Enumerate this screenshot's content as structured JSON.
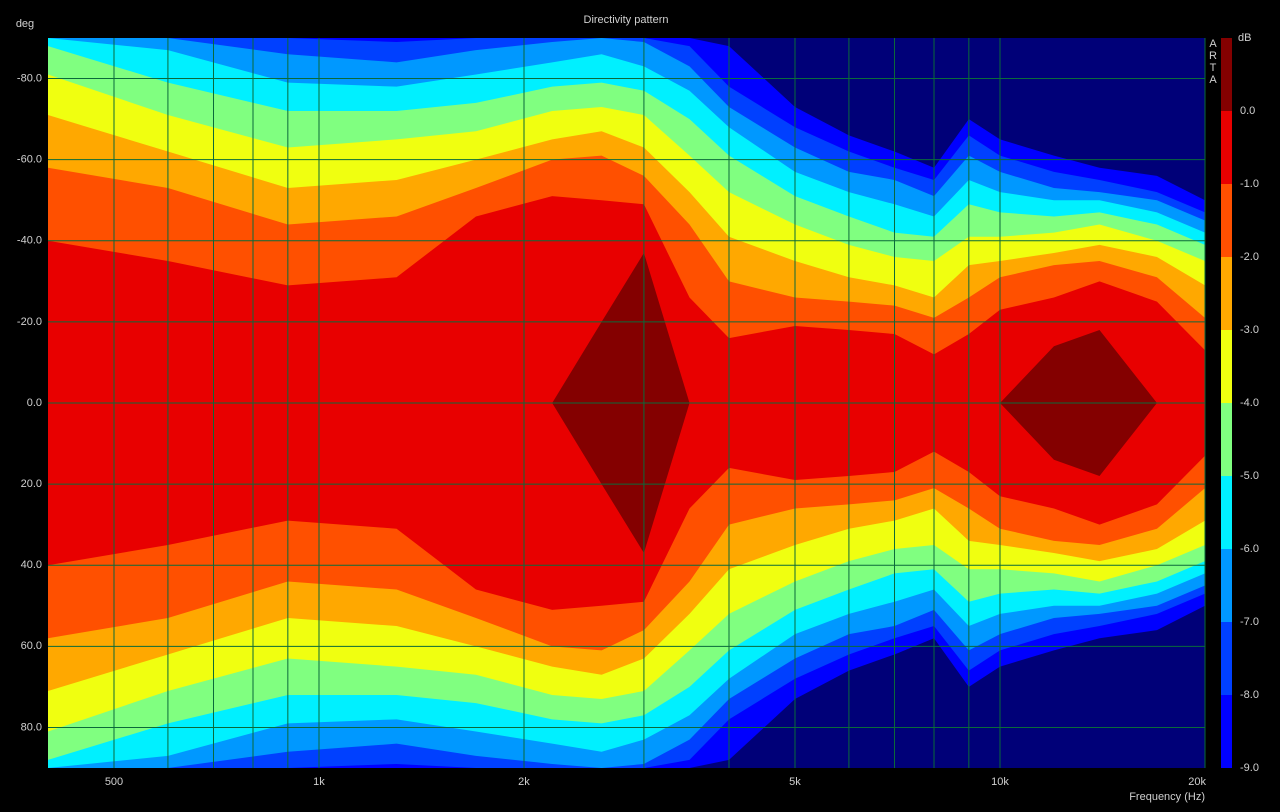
{
  "chart_data": {
    "type": "contour",
    "title": "Directivity pattern",
    "y_label": "deg",
    "x_label": "Frequency (Hz)",
    "colorbar_label": "dB",
    "watermark": "ARTA",
    "x_scale": "log",
    "xlim": [
      400,
      20000
    ],
    "xticks": [
      {
        "value": 500,
        "label": "500"
      },
      {
        "value": 1000,
        "label": "1k"
      },
      {
        "value": 2000,
        "label": "2k"
      },
      {
        "value": 5000,
        "label": "5k"
      },
      {
        "value": 10000,
        "label": "10k"
      },
      {
        "value": 20000,
        "label": "20k"
      }
    ],
    "x_minor_grid": [
      600,
      700,
      800,
      900,
      3000,
      4000,
      6000,
      7000,
      8000,
      9000
    ],
    "ylim": [
      -90,
      90
    ],
    "yticks": [
      {
        "value": -80,
        "label": "-80.0"
      },
      {
        "value": -60,
        "label": "-60.0"
      },
      {
        "value": -40,
        "label": "-40.0"
      },
      {
        "value": -20,
        "label": "-20.0"
      },
      {
        "value": 0,
        "label": "0.0"
      },
      {
        "value": 20,
        "label": "20.0"
      },
      {
        "value": 40,
        "label": "40.0"
      },
      {
        "value": 60,
        "label": "60.0"
      },
      {
        "value": 80,
        "label": "80.0"
      }
    ],
    "clim": [
      -9,
      1
    ],
    "cticks": [
      {
        "value": 0,
        "label": "0.0"
      },
      {
        "value": -1,
        "label": "-1.0"
      },
      {
        "value": -2,
        "label": "-2.0"
      },
      {
        "value": -3,
        "label": "-3.0"
      },
      {
        "value": -4,
        "label": "-4.0"
      },
      {
        "value": -5,
        "label": "-5.0"
      },
      {
        "value": -6,
        "label": "-6.0"
      },
      {
        "value": -7,
        "label": "-7.0"
      },
      {
        "value": -8,
        "label": "-8.0"
      },
      {
        "value": -9,
        "label": "-9.0"
      }
    ],
    "symmetric": true,
    "grid": true,
    "background_color": "#000078",
    "x": [
      400,
      600,
      900,
      1300,
      1700,
      2200,
      2600,
      3000,
      3500,
      4000,
      5000,
      6000,
      7000,
      8000,
      9000,
      10000,
      12000,
      14000,
      17000,
      20000
    ],
    "series": [
      {
        "level": -9,
        "color": "#0000ff",
        "values": [
          90,
          90,
          90,
          90,
          90,
          90,
          90,
          90,
          90,
          88,
          73,
          66,
          62,
          58,
          70,
          65,
          61,
          58,
          56,
          50
        ]
      },
      {
        "level": -8,
        "color": "#0040ff",
        "values": [
          90,
          90,
          90,
          89,
          90,
          90,
          90,
          90,
          88,
          78,
          68,
          62,
          58,
          55,
          66,
          61,
          57,
          55,
          52,
          47
        ]
      },
      {
        "level": -7,
        "color": "#0098ff",
        "values": [
          90,
          90,
          86,
          84,
          87,
          89,
          90,
          89,
          83,
          73,
          63,
          57,
          55,
          51,
          61,
          57,
          53,
          52,
          50,
          45
        ]
      },
      {
        "level": -6,
        "color": "#00f0ff",
        "values": [
          90,
          87,
          79,
          78,
          81,
          84,
          86,
          83,
          77,
          68,
          57,
          52,
          49,
          46,
          55,
          52,
          50,
          50,
          47,
          42
        ]
      },
      {
        "level": -5,
        "color": "#80ff80",
        "values": [
          88,
          79,
          72,
          72,
          74,
          78,
          79,
          77,
          70,
          61,
          51,
          46,
          42,
          41,
          49,
          47,
          46,
          47,
          44,
          39
        ]
      },
      {
        "level": -4,
        "color": "#f0ff10",
        "values": [
          81,
          71,
          63,
          65,
          67,
          72,
          73,
          71,
          61,
          52,
          44,
          39,
          36,
          35,
          41,
          41,
          42,
          44,
          40,
          35
        ]
      },
      {
        "level": -3,
        "color": "#ffa800",
        "values": [
          71,
          62,
          53,
          55,
          60,
          65,
          67,
          63,
          52,
          41,
          35,
          31,
          29,
          26,
          34,
          35,
          37,
          39,
          36,
          29
        ]
      },
      {
        "level": -2,
        "color": "#ff5000",
        "values": [
          58,
          53,
          44,
          46,
          53,
          60,
          61,
          56,
          44,
          30,
          26,
          25,
          24,
          21,
          26,
          31,
          34,
          35,
          31,
          21
        ]
      },
      {
        "level": -1,
        "color": "#e80000",
        "values": [
          40,
          35,
          29,
          31,
          46,
          51,
          50,
          49,
          26,
          16,
          19,
          18,
          17,
          12,
          17,
          23,
          26,
          30,
          25,
          13
        ]
      },
      {
        "level": 0,
        "color": "#840000",
        "values": [
          0,
          0,
          0,
          0,
          0,
          0,
          20,
          37,
          0,
          0,
          0,
          0,
          0,
          0,
          0,
          0,
          14,
          18,
          0,
          0
        ]
      }
    ]
  }
}
